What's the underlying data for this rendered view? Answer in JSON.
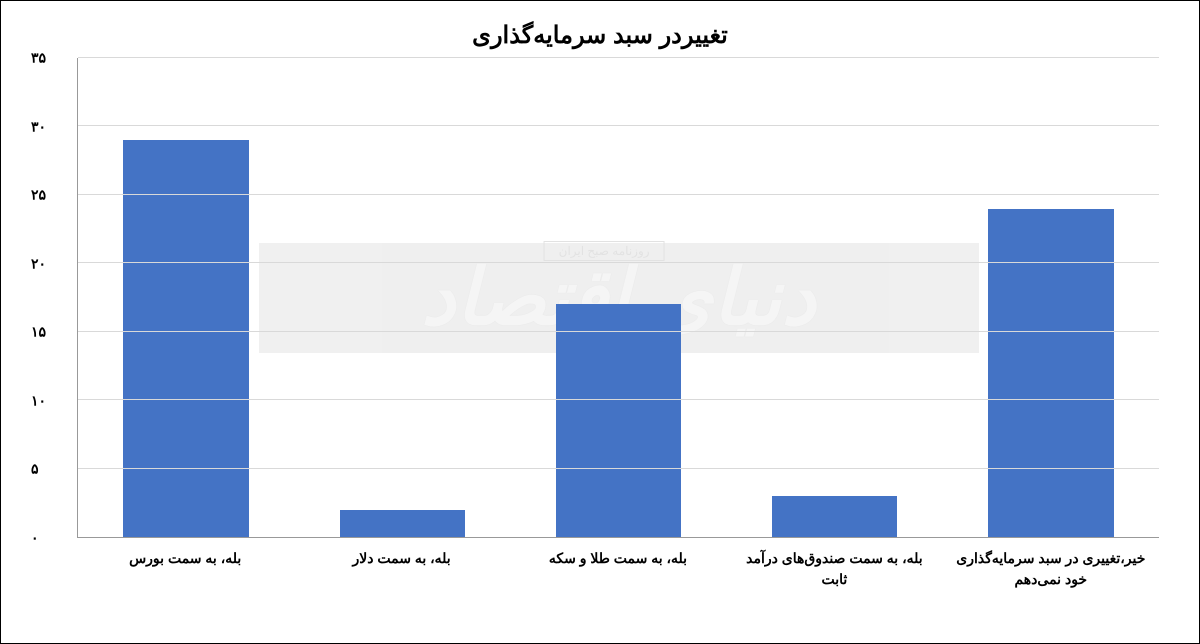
{
  "chart": {
    "type": "bar",
    "title": "تغییردر سبد سرمایه‌گذاری",
    "title_fontsize": 24,
    "background_color": "#ffffff",
    "grid_color": "#d9d9d9",
    "axis_color": "#999999",
    "bar_color": "#4473c5",
    "bar_width_ratio": 0.58,
    "ylim": [
      0,
      35
    ],
    "ytick_step": 5,
    "yticks": [
      {
        "value": 0,
        "label": "۰"
      },
      {
        "value": 5,
        "label": "۵"
      },
      {
        "value": 10,
        "label": "۱۰"
      },
      {
        "value": 15,
        "label": "۱۵"
      },
      {
        "value": 20,
        "label": "۲۰"
      },
      {
        "value": 25,
        "label": "۲۵"
      },
      {
        "value": 30,
        "label": "۳۰"
      },
      {
        "value": 35,
        "label": "۳۵"
      }
    ],
    "label_fontsize": 14,
    "label_fontweight": "bold",
    "categories": [
      "بله، به سمت بورس",
      "بله، به سمت دلار",
      "بله، به سمت طلا و سکه",
      "بله، به سمت صندوق‌های درآمد ثابت",
      "خیر،تغییری در سبد سرمایه‌گذاری خود نمی‌دهم"
    ],
    "values": [
      29,
      2,
      17,
      3,
      24
    ]
  },
  "watermark": {
    "main_text": "دنیای اقتصاد",
    "badge_text": "روزنامه صبح ایران",
    "box_color": "#e6e6e6",
    "text_color": "#efefef"
  }
}
